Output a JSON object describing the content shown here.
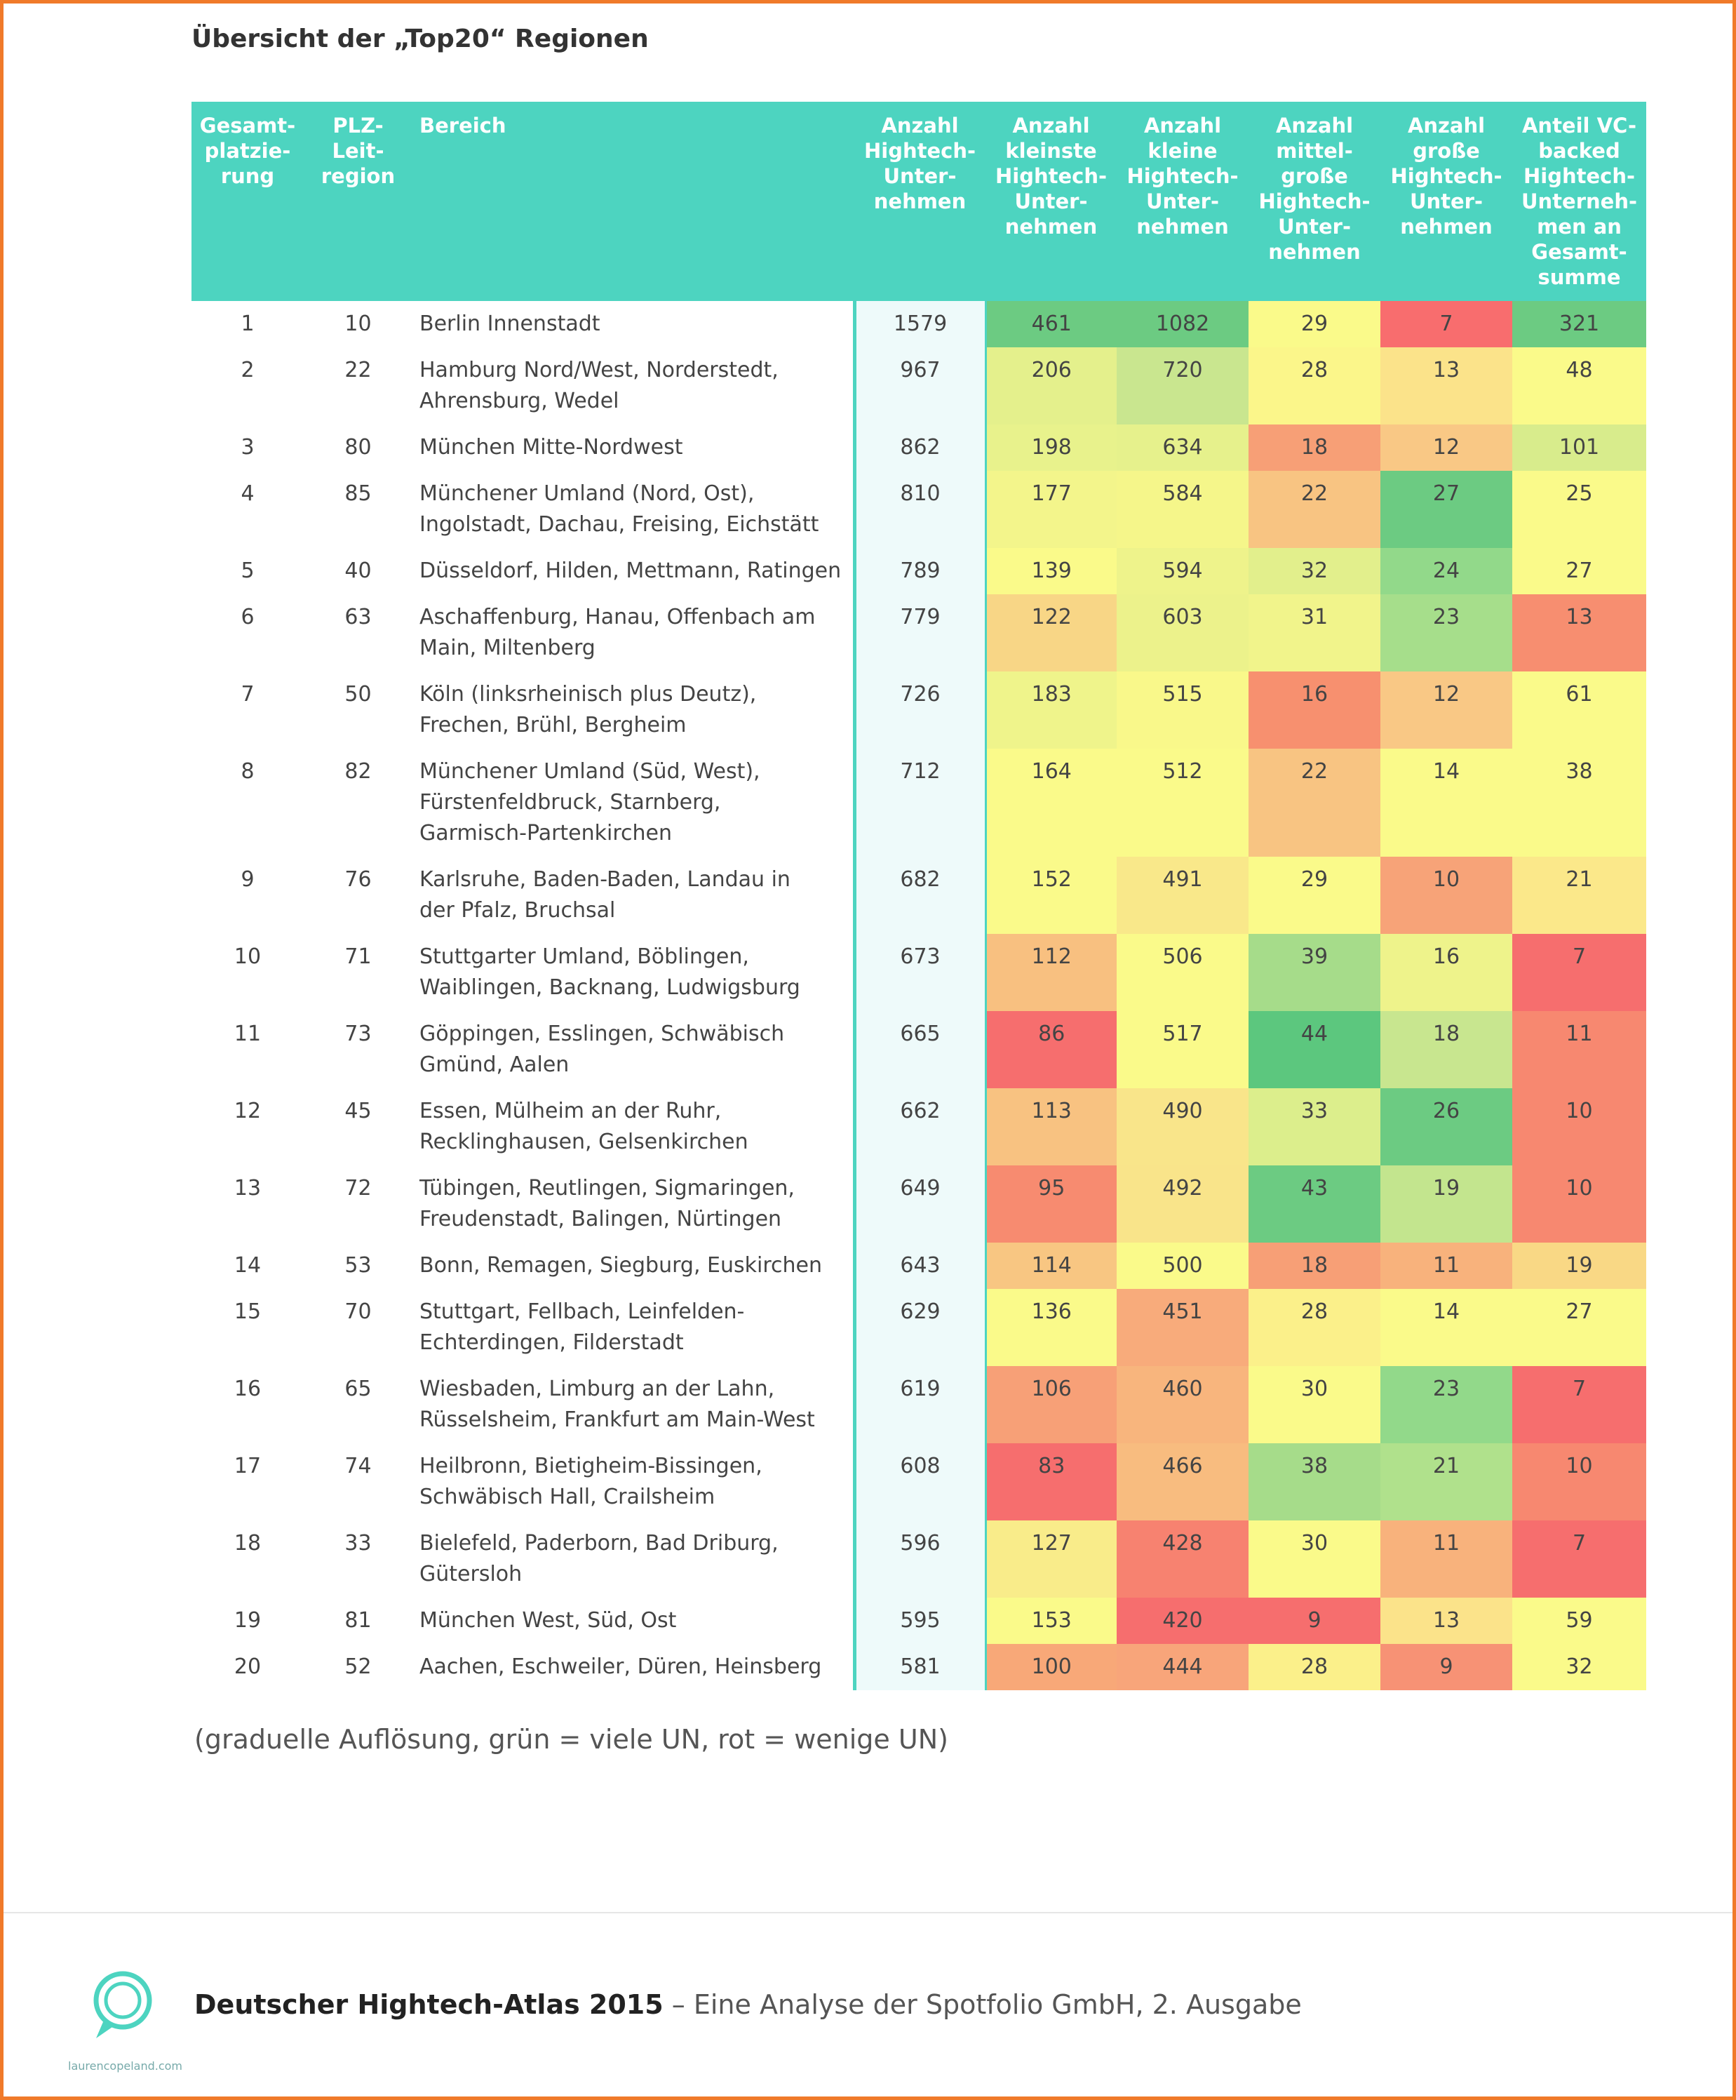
{
  "title": "Übersicht der „Top20“ Regionen",
  "table": {
    "columns": [
      "Gesamt-\nplatzie-\nrung",
      "PLZ-\nLeit-\nregion",
      "Bereich",
      "Anzahl\nHightech-\nUnter-\nnehmen",
      "Anzahl\nkleinste\nHightech-\nUnter-\nnehmen",
      "Anzahl\nkleine\nHightech-\nUnter-\nnehmen",
      "Anzahl\nmittel-\ngroße\nHightech-\nUnter-\nnehmen",
      "Anzahl\ngroße\nHightech-\nUnter-\nnehmen",
      "Anteil VC-\nbacked\nHightech-\nUnterneh-\nmen an\nGesamt-\nsumme"
    ],
    "rows": [
      [
        1,
        10,
        "Berlin Innenstadt",
        1579,
        461,
        1082,
        29,
        7,
        321
      ],
      [
        2,
        22,
        "Hamburg Nord/West, Norderstedt,\nAhrensburg, Wedel",
        967,
        206,
        720,
        28,
        13,
        48
      ],
      [
        3,
        80,
        "München Mitte-Nordwest",
        862,
        198,
        634,
        18,
        12,
        101
      ],
      [
        4,
        85,
        "Münchener Umland (Nord, Ost),\nIngolstadt, Dachau, Freising, Eichstätt",
        810,
        177,
        584,
        22,
        27,
        25
      ],
      [
        5,
        40,
        "Düsseldorf, Hilden, Mettmann, Ratingen",
        789,
        139,
        594,
        32,
        24,
        27
      ],
      [
        6,
        63,
        "Aschaffenburg, Hanau, Offenbach am\nMain, Miltenberg",
        779,
        122,
        603,
        31,
        23,
        13
      ],
      [
        7,
        50,
        "Köln (linksrheinisch plus Deutz),\nFrechen, Brühl, Bergheim",
        726,
        183,
        515,
        16,
        12,
        61
      ],
      [
        8,
        82,
        "Münchener Umland (Süd, West),\nFürstenfeldbruck, Starnberg,\nGarmisch-Partenkirchen",
        712,
        164,
        512,
        22,
        14,
        38
      ],
      [
        9,
        76,
        "Karlsruhe, Baden-Baden, Landau in\nder Pfalz, Bruchsal",
        682,
        152,
        491,
        29,
        10,
        21
      ],
      [
        10,
        71,
        "Stuttgarter Umland, Böblingen,\nWaiblingen, Backnang, Ludwigsburg",
        673,
        112,
        506,
        39,
        16,
        7
      ],
      [
        11,
        73,
        "Göppingen, Esslingen, Schwäbisch\nGmünd, Aalen",
        665,
        86,
        517,
        44,
        18,
        11
      ],
      [
        12,
        45,
        "Essen, Mülheim an der Ruhr,\nRecklinghausen, Gelsenkirchen",
        662,
        113,
        490,
        33,
        26,
        10
      ],
      [
        13,
        72,
        "Tübingen, Reutlingen, Sigmaringen,\nFreudenstadt, Balingen, Nürtingen",
        649,
        95,
        492,
        43,
        19,
        10
      ],
      [
        14,
        53,
        "Bonn, Remagen, Siegburg, Euskirchen",
        643,
        114,
        500,
        18,
        11,
        19
      ],
      [
        15,
        70,
        "Stuttgart, Fellbach, Leinfelden-\nEchterdingen, Filderstadt",
        629,
        136,
        451,
        28,
        14,
        27
      ],
      [
        16,
        65,
        "Wiesbaden, Limburg an der Lahn,\nRüsselsheim, Frankfurt am Main-West",
        619,
        106,
        460,
        30,
        23,
        7
      ],
      [
        17,
        74,
        "Heilbronn, Bietigheim-Bissingen,\nSchwäbisch Hall, Crailsheim",
        608,
        83,
        466,
        38,
        21,
        10
      ],
      [
        18,
        33,
        "Bielefeld, Paderborn, Bad Driburg,\nGütersloh",
        596,
        127,
        428,
        30,
        11,
        7
      ],
      [
        19,
        81,
        "München West, Süd, Ost",
        595,
        153,
        420,
        9,
        13,
        59
      ],
      [
        20,
        52,
        "Aachen, Eschweiler, Düren, Heinsberg",
        581,
        100,
        444,
        28,
        9,
        32
      ]
    ],
    "heat_colors": [
      [
        "#6ccb82",
        "#6ccb82",
        "#fafa8a",
        "#f86d6e",
        "#6ccb82"
      ],
      [
        "#e4f08c",
        "#c9e68f",
        "#fbf68a",
        "#fbe38a",
        "#fafa8a"
      ],
      [
        "#e8f28c",
        "#e6f18c",
        "#f79f76",
        "#f9c885",
        "#d8ec8c"
      ],
      [
        "#f3f58b",
        "#f5f68a",
        "#f8c482",
        "#6ccb82",
        "#fafa8a"
      ],
      [
        "#fafa8a",
        "#eef38b",
        "#e2ef8c",
        "#92d98a",
        "#fafa8a"
      ],
      [
        "#f8d686",
        "#ecf28b",
        "#f1f48b",
        "#a6de8b",
        "#f78e70"
      ],
      [
        "#eff48b",
        "#f9f88a",
        "#f7906f",
        "#f9c885",
        "#fafa8a"
      ],
      [
        "#fafa8a",
        "#fafa8a",
        "#f8c482",
        "#fafa8a",
        "#fafa8a"
      ],
      [
        "#fafa8a",
        "#f9e88a",
        "#fafa8a",
        "#f7a378",
        "#fbe88a"
      ],
      [
        "#f8c080",
        "#fafa8a",
        "#a6dc8a",
        "#eef38b",
        "#f66e6e"
      ],
      [
        "#f66e6e",
        "#fafa8a",
        "#5cc77e",
        "#c8e68f",
        "#f78870"
      ],
      [
        "#f8c281",
        "#f9e58a",
        "#dcee8c",
        "#6ccb82",
        "#f78870"
      ],
      [
        "#f78b70",
        "#f9e48a",
        "#6ccb82",
        "#c3e58e",
        "#f78870"
      ],
      [
        "#f8c682",
        "#fafa8a",
        "#f79f76",
        "#f8b27c",
        "#f9d885"
      ],
      [
        "#fafa8a",
        "#f8ab7b",
        "#fbf08a",
        "#fafa8a",
        "#fafa8a"
      ],
      [
        "#f7a077",
        "#f8b57d",
        "#fafa8a",
        "#92d98a",
        "#f66e6e"
      ],
      [
        "#f66e6e",
        "#f8bc7f",
        "#a6dc8a",
        "#b0e18c",
        "#f78870"
      ],
      [
        "#f9ec8a",
        "#f78270",
        "#fafa8a",
        "#f8b27c",
        "#f66e6e"
      ],
      [
        "#fafa8a",
        "#f66e6e",
        "#f66e6e",
        "#fbe38a",
        "#fafa8a"
      ],
      [
        "#f8a878",
        "#f8a57a",
        "#fbf08a",
        "#f79275",
        "#fafa8a"
      ]
    ]
  },
  "note": "(graduelle Auflösung, grün = viele UN, rot = wenige UN)",
  "footer": {
    "bold": "Deutscher Hightech-Atlas 2015",
    "text": " – Eine Analyse der Spotfolio GmbH, 2. Ausgabe"
  },
  "watermark": "laurencopeland.com"
}
